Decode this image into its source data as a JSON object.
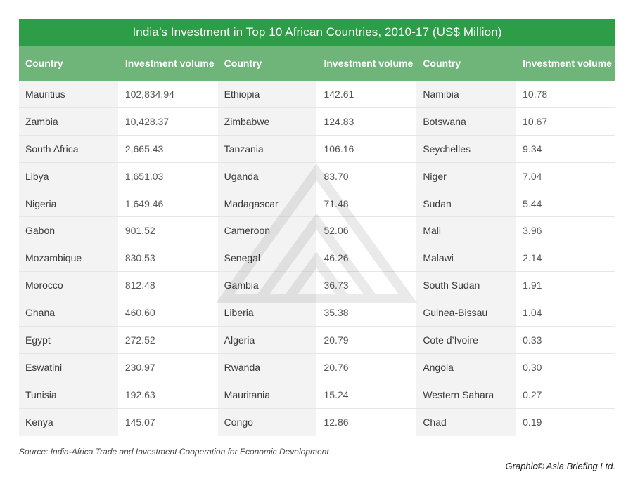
{
  "chart_data": {
    "type": "table",
    "title": "India’s Investment in Top 10 African Countries, 2010-17 (US$ Million)",
    "columns": [
      "Country",
      "Investment volume"
    ],
    "rows": [
      {
        "country": "Mauritius",
        "value": "102,834.94"
      },
      {
        "country": "Zambia",
        "value": "10,428.37"
      },
      {
        "country": "South Africa",
        "value": "2,665.43"
      },
      {
        "country": "Libya",
        "value": "1,651.03"
      },
      {
        "country": "Nigeria",
        "value": "1,649.46"
      },
      {
        "country": "Gabon",
        "value": "901.52"
      },
      {
        "country": "Mozambique",
        "value": "830.53"
      },
      {
        "country": "Morocco",
        "value": "812.48"
      },
      {
        "country": "Ghana",
        "value": "460.60"
      },
      {
        "country": "Egypt",
        "value": "272.52"
      },
      {
        "country": "Eswatini",
        "value": "230.97"
      },
      {
        "country": "Tunisia",
        "value": "192.63"
      },
      {
        "country": "Kenya",
        "value": "145.07"
      },
      {
        "country": "Ethiopia",
        "value": "142.61"
      },
      {
        "country": "Zimbabwe",
        "value": "124.83"
      },
      {
        "country": "Tanzania",
        "value": "106.16"
      },
      {
        "country": "Uganda",
        "value": "83.70"
      },
      {
        "country": "Madagascar",
        "value": "71.48"
      },
      {
        "country": "Cameroon",
        "value": "52.06"
      },
      {
        "country": "Senegal",
        "value": "46.26"
      },
      {
        "country": "Gambia",
        "value": "36.73"
      },
      {
        "country": "Liberia",
        "value": "35.38"
      },
      {
        "country": "Algeria",
        "value": "20.79"
      },
      {
        "country": "Rwanda",
        "value": "20.76"
      },
      {
        "country": "Mauritania",
        "value": "15.24"
      },
      {
        "country": "Congo",
        "value": "12.86"
      },
      {
        "country": "Namibia",
        "value": "10.78"
      },
      {
        "country": "Botswana",
        "value": "10.67"
      },
      {
        "country": "Seychelles",
        "value": "9.34"
      },
      {
        "country": "Niger",
        "value": "7.04"
      },
      {
        "country": "Sudan",
        "value": "5.44"
      },
      {
        "country": "Mali",
        "value": "3.96"
      },
      {
        "country": "Malawi",
        "value": "2.14"
      },
      {
        "country": "South Sudan",
        "value": "1.91"
      },
      {
        "country": "Guinea-Bissau",
        "value": "1.04"
      },
      {
        "country": "Cote d’Ivoire",
        "value": "0.33"
      },
      {
        "country": "Angola",
        "value": "0.30"
      },
      {
        "country": "Western Sahara",
        "value": "0.27"
      },
      {
        "country": "Chad",
        "value": "0.19"
      }
    ],
    "header_color": "#6fb478",
    "title_color": "#2e9d48"
  },
  "source": "Source: India-Africa Trade and Investment Cooperation for Economic Development",
  "credit": "Graphic© Asia Briefing Ltd."
}
